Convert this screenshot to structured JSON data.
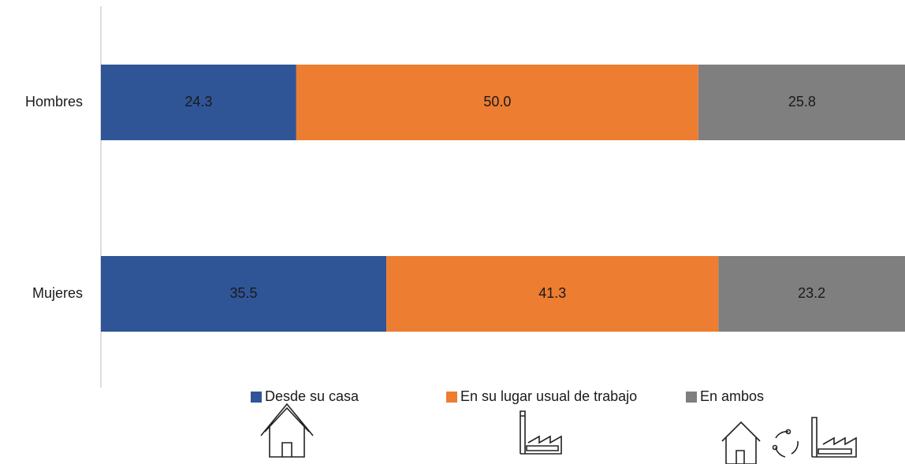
{
  "chart_data": {
    "type": "stacked-bar-horizontal",
    "categories": [
      "Hombres",
      "Mujeres"
    ],
    "series": [
      {
        "name": "Desde su casa",
        "color": "#2f5597",
        "values": [
          24.3,
          35.5
        ],
        "value_labels": [
          "24.3",
          "35.5"
        ]
      },
      {
        "name": "En su lugar usual de trabajo",
        "color": "#ed7d31",
        "values": [
          50.0,
          41.3
        ],
        "value_labels": [
          "50.0",
          "41.3"
        ]
      },
      {
        "name": "En ambos",
        "color": "#7f7f7f",
        "values": [
          25.8,
          23.2
        ],
        "value_labels": [
          "25.8",
          "23.2"
        ]
      }
    ],
    "xlim": [
      0,
      100
    ],
    "legend": "bottom"
  }
}
